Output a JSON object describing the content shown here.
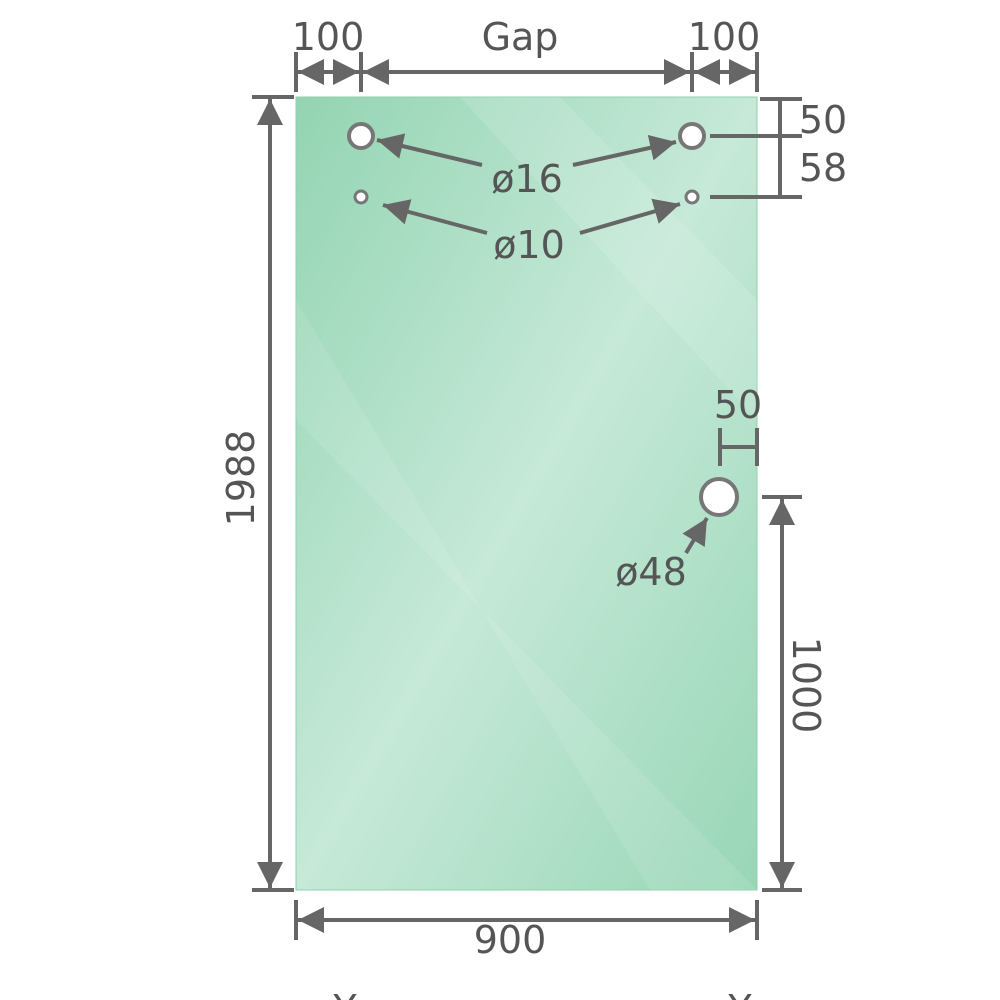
{
  "colors": {
    "glass": "#9ed8b9",
    "glass_light": "#c8eadb",
    "dimension": "#666666",
    "text": "#555555"
  },
  "dimensions": {
    "top_left_offset": "100",
    "top_gap": "Gap",
    "top_right_offset": "100",
    "height": "1988",
    "width": "900",
    "hole_top_offset": "50",
    "hole_spacing": "58",
    "handle_edge_offset": "50",
    "handle_height": "1000"
  },
  "holes": {
    "large_upper": "ø16",
    "small_lower": "ø10",
    "handle": "ø48"
  },
  "bottom_marks": [
    "Y",
    "Y"
  ]
}
